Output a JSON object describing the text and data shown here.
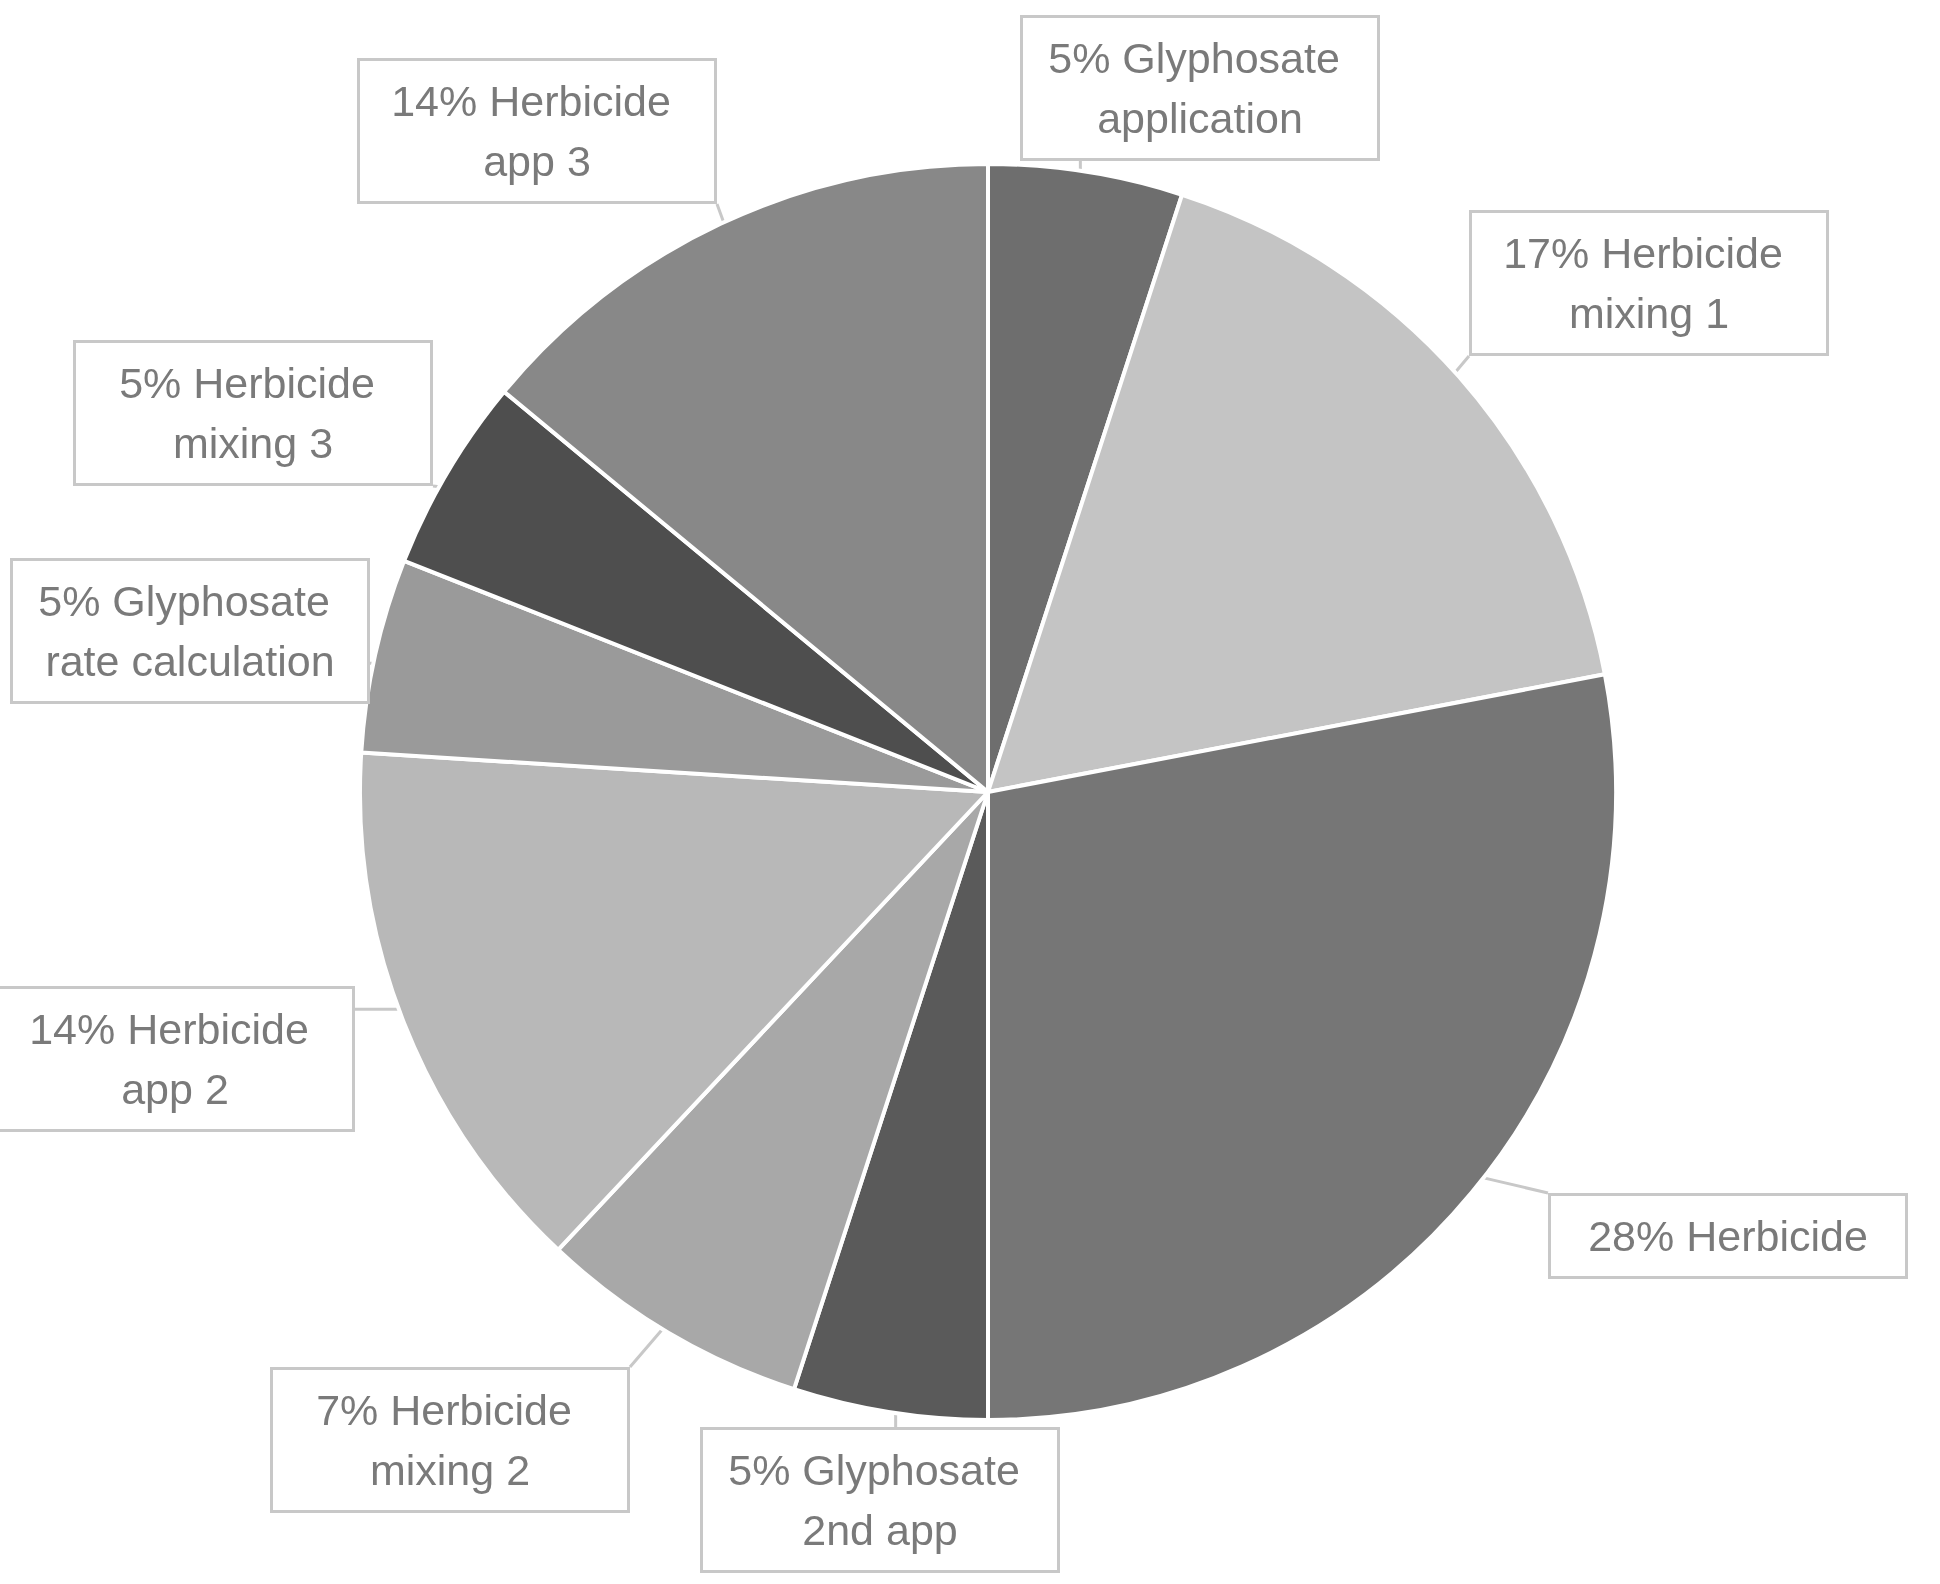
{
  "chart_data": {
    "type": "pie",
    "categories": [
      "Glyphosate application",
      "Herbicide mixing 1",
      "Herbicide",
      "Glyphosate 2nd app",
      "Herbicide mixing 2",
      "Herbicide app 2",
      "Glyphosate rate calculation",
      "Herbicide mixing 3",
      "Herbicide app 3"
    ],
    "values": [
      5,
      17,
      28,
      5,
      7,
      14,
      5,
      5,
      14
    ],
    "colors": [
      "#6e6e6e",
      "#c4c4c4",
      "#767676",
      "#5a5a5a",
      "#a8a8a8",
      "#b8b8b8",
      "#9a9a9a",
      "#4e4e4e",
      "#888888"
    ],
    "value_labels": [
      "5%",
      "17%",
      "28%",
      "5%",
      "7%",
      "14%",
      "5%",
      "5%",
      "14%"
    ]
  }
}
